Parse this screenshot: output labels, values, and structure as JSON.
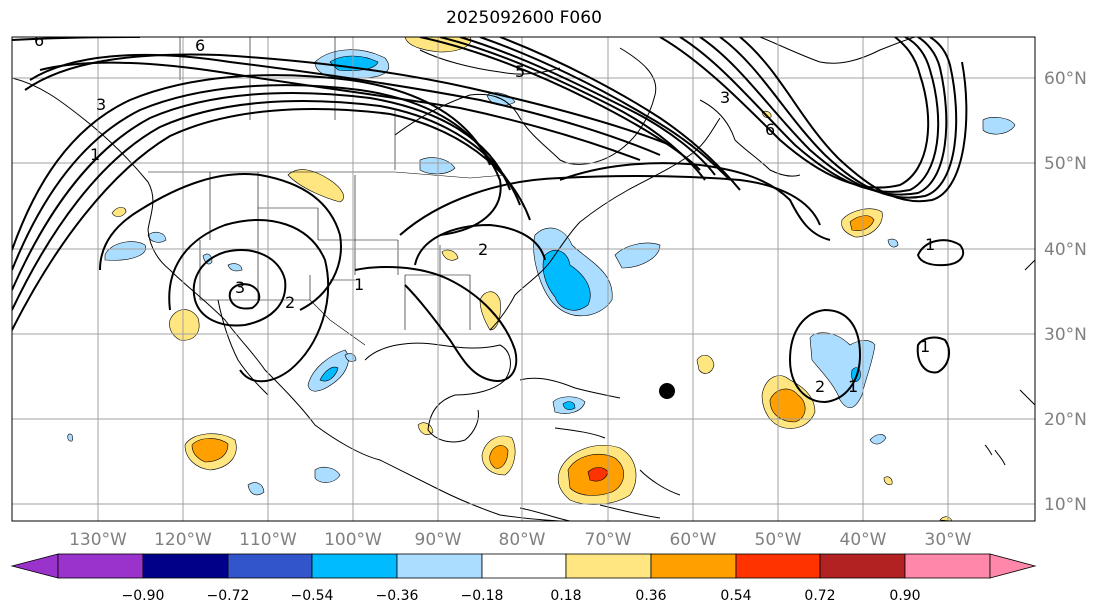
{
  "title": "2025092600 F060",
  "map": {
    "lon_labels": [
      "130°W",
      "120°W",
      "110°W",
      "100°W",
      "90°W",
      "80°W",
      "70°W",
      "60°W",
      "50°W",
      "40°W",
      "30°W"
    ],
    "lat_labels": [
      "60°N",
      "50°N",
      "40°N",
      "30°N",
      "20°N",
      "10°N"
    ],
    "contour_labels": [
      "6",
      "6",
      "3",
      "3",
      "2",
      "2",
      "1",
      "1",
      "5",
      "3",
      "6",
      "2",
      "1",
      "1",
      "1"
    ]
  },
  "colorbar": {
    "ticks": [
      "−0.90",
      "−0.72",
      "−0.54",
      "−0.36",
      "−0.18",
      "0.18",
      "0.36",
      "0.54",
      "0.72",
      "0.90"
    ],
    "colors": [
      "#9933cc",
      "#000088",
      "#3355cc",
      "#00bbff",
      "#aaddff",
      "#ffffff",
      "#ffe680",
      "#ffa000",
      "#ff3300",
      "#b22222",
      "#ff88aa"
    ]
  },
  "colors": {
    "light_blue": "#aaddff",
    "cyan": "#00bbff",
    "light_yellow": "#ffe680",
    "orange": "#ffa000",
    "red_orange": "#ff3300",
    "grid": "#a0a0a0"
  }
}
